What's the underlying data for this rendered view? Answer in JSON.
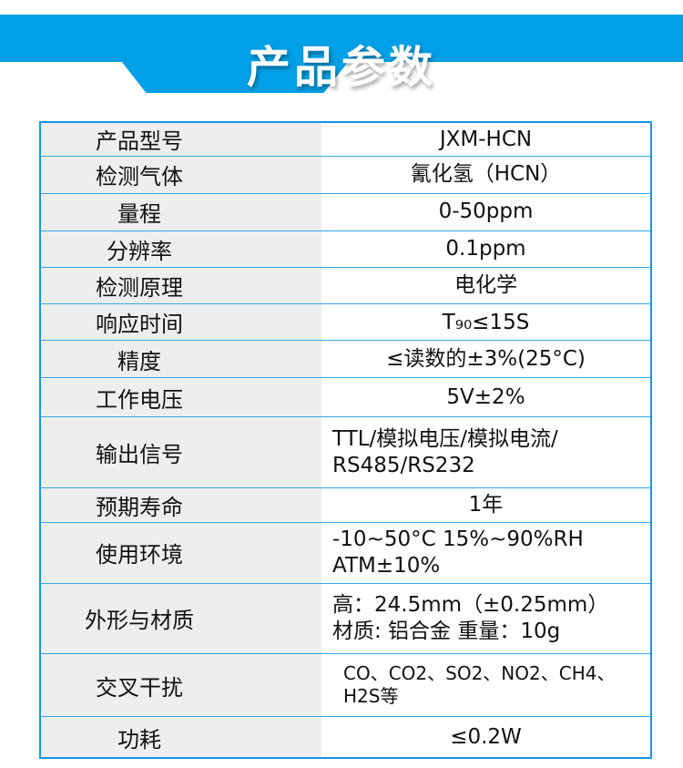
{
  "header": {
    "title": "产品参数",
    "accent": "#01a0e6"
  },
  "rows": [
    {
      "label": "产品型号",
      "value": "JXM-HCN"
    },
    {
      "label": "检测气体",
      "value": "氰化氢（HCN）"
    },
    {
      "label": "量程",
      "value": "0-50ppm"
    },
    {
      "label": "分辨率",
      "value": "0.1ppm"
    },
    {
      "label": "检测原理",
      "value": "电化学"
    },
    {
      "label": "响应时间",
      "value": "T₉₀≤15S"
    },
    {
      "label": "精度",
      "value": "≤读数的±3%(25°C)"
    },
    {
      "label": "工作电压",
      "value": "5V±2%"
    },
    {
      "label": "输出信号",
      "value": "TTL/模拟电压/模拟电流/\nRS485/RS232"
    },
    {
      "label": "预期寿命",
      "value": "1年"
    },
    {
      "label": "使用环境",
      "value": "-10~50°C 15%~90%RH\nATM±10%"
    },
    {
      "label": "外形与材质",
      "value": "高：24.5mm（±0.25mm）\n材质: 铝合金  重量：10g"
    },
    {
      "label": "交叉干扰",
      "value": "CO、CO2、SO2、NO2、CH4、\nH2S等"
    },
    {
      "label": "功耗",
      "value": "≤0.2W"
    }
  ]
}
